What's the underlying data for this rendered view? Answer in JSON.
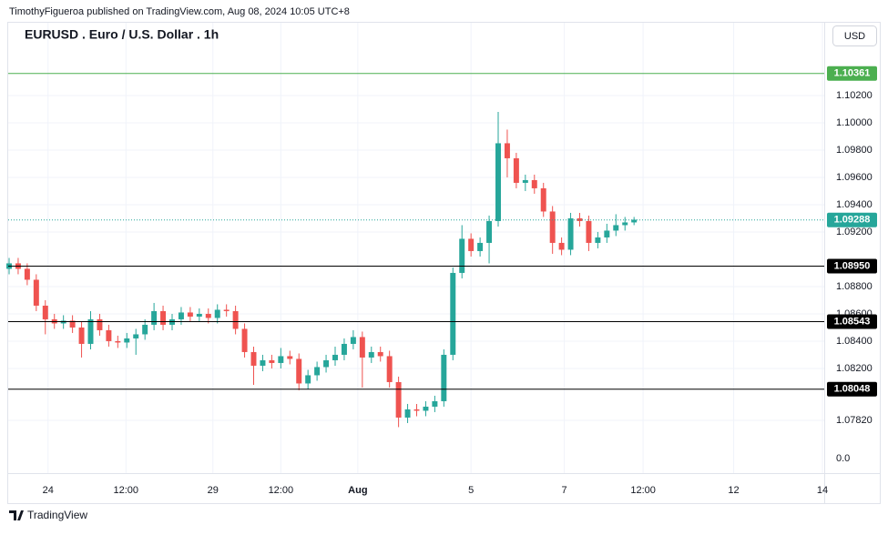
{
  "header": {
    "publisher": "TimothyFigueroa published on TradingView.com, Aug 08, 2024 10:05 UTC+8",
    "currency": "USD"
  },
  "footer": {
    "brand": "TradingView"
  },
  "chart_data": {
    "type": "candlestick",
    "title": "EURUSD . Euro / U.S. Dollar . 1h",
    "up_color": "#26a69a",
    "down_color": "#ef5350",
    "grid": true,
    "xlim": [
      0,
      90
    ],
    "xticks": [
      {
        "value": 4.3,
        "label": "24"
      },
      {
        "value": 12.9,
        "label": "12:00"
      },
      {
        "value": 22.5,
        "label": "29"
      },
      {
        "value": 30,
        "label": "12:00"
      },
      {
        "value": 38.5,
        "label": "Aug"
      },
      {
        "value": 51,
        "label": "5"
      },
      {
        "value": 61.3,
        "label": "7"
      },
      {
        "value": 70,
        "label": "12:00"
      },
      {
        "value": 80,
        "label": "12"
      },
      {
        "value": 89.8,
        "label": "14"
      }
    ],
    "ylim": [
      1.07433,
      1.10733
    ],
    "yticks": [
      {
        "value": 1.0782,
        "label": "1.07820"
      },
      {
        "value": 1.082,
        "label": "1.08200"
      },
      {
        "value": 1.084,
        "label": "1.08400"
      },
      {
        "value": 1.086,
        "label": "1.08600"
      },
      {
        "value": 1.088,
        "label": "1.08800"
      },
      {
        "value": 1.092,
        "label": "1.09200"
      },
      {
        "value": 1.094,
        "label": "1.09400"
      },
      {
        "value": 1.096,
        "label": "1.09600"
      },
      {
        "value": 1.098,
        "label": "1.09800"
      },
      {
        "value": 1.1,
        "label": "1.10000"
      },
      {
        "value": 1.102,
        "label": "1.10200"
      }
    ],
    "bottom_axis_label": "0.0",
    "levels": [
      {
        "value": 1.10361,
        "label": "1.10361",
        "color": "#4caf50"
      },
      {
        "value": 1.0895,
        "label": "1.08950",
        "color": "#000000"
      },
      {
        "value": 1.08543,
        "label": "1.08543",
        "color": "#000000"
      },
      {
        "value": 1.08048,
        "label": "1.08048",
        "color": "#000000"
      }
    ],
    "last_price": {
      "value": 1.09288,
      "label": "1.09288",
      "color": "#26a69a"
    },
    "open": [
      1.0893,
      1.0897,
      1.0893,
      1.0885,
      1.0866,
      1.0856,
      1.0853,
      1.0855,
      1.085,
      1.0838,
      1.0856,
      1.0848,
      1.084,
      1.0839,
      1.0842,
      1.0845,
      1.0852,
      1.0862,
      1.0852,
      1.0856,
      1.0861,
      1.0858,
      1.086,
      1.0857,
      1.0863,
      1.0862,
      1.0849,
      1.0832,
      1.0822,
      1.0826,
      1.0824,
      1.0829,
      1.0827,
      1.0809,
      1.0815,
      1.0821,
      1.0826,
      1.083,
      1.0838,
      1.0843,
      1.0828,
      1.0832,
      1.0829,
      1.081,
      1.0784,
      1.079,
      1.0789,
      1.0792,
      1.0796,
      1.083,
      1.089,
      1.0915,
      1.0906,
      1.0912,
      1.0928,
      1.0985,
      1.0974,
      1.0956,
      1.0958,
      1.0952,
      1.0935,
      1.0912,
      1.0907,
      1.093,
      1.0928,
      1.0912,
      1.0916,
      1.0921,
      1.0925,
      1.0927
    ],
    "high": [
      1.0901,
      1.0901,
      1.0897,
      1.0889,
      1.087,
      1.086,
      1.0859,
      1.0859,
      1.0854,
      1.0862,
      1.086,
      1.0852,
      1.0844,
      1.0846,
      1.0849,
      1.0856,
      1.0868,
      1.0866,
      1.086,
      1.0865,
      1.0865,
      1.0864,
      1.0864,
      1.0867,
      1.0867,
      1.0866,
      1.0853,
      1.0836,
      1.083,
      1.083,
      1.0835,
      1.0833,
      1.0831,
      1.0819,
      1.0825,
      1.083,
      1.0836,
      1.0842,
      1.0848,
      1.0847,
      1.0836,
      1.0836,
      1.0833,
      1.0814,
      1.0794,
      1.0794,
      1.0796,
      1.08,
      1.0834,
      1.0894,
      1.0925,
      1.0919,
      1.0916,
      1.0932,
      1.1008,
      1.0995,
      1.0978,
      1.0962,
      1.0962,
      1.0956,
      1.0939,
      1.0916,
      1.0934,
      1.0934,
      1.0932,
      1.092,
      1.0926,
      1.0933,
      1.0931,
      1.0931
    ],
    "low": [
      1.0889,
      1.0889,
      1.0881,
      1.0862,
      1.0845,
      1.0849,
      1.0849,
      1.0846,
      1.0828,
      1.0834,
      1.0844,
      1.0836,
      1.0835,
      1.0835,
      1.083,
      1.0841,
      1.0848,
      1.0848,
      1.0848,
      1.0852,
      1.0854,
      1.0854,
      1.0853,
      1.0853,
      1.0858,
      1.0845,
      1.0828,
      1.0808,
      1.0818,
      1.082,
      1.082,
      1.0823,
      1.0804,
      1.0805,
      1.0811,
      1.0817,
      1.0822,
      1.0826,
      1.0834,
      1.0806,
      1.0824,
      1.0825,
      1.0806,
      1.0777,
      1.078,
      1.0785,
      1.0785,
      1.0788,
      1.0792,
      1.0826,
      1.0886,
      1.0902,
      1.0902,
      1.0897,
      1.0924,
      1.096,
      1.0952,
      1.095,
      1.0948,
      1.0931,
      1.0904,
      1.0903,
      1.0903,
      1.0924,
      1.0906,
      1.0908,
      1.0912,
      1.0917,
      1.0921,
      1.0925
    ],
    "close": [
      1.0897,
      1.0893,
      1.0885,
      1.0866,
      1.0856,
      1.0853,
      1.0855,
      1.085,
      1.0838,
      1.0856,
      1.0848,
      1.084,
      1.0839,
      1.0842,
      1.0845,
      1.0852,
      1.0862,
      1.0852,
      1.0856,
      1.0861,
      1.0858,
      1.086,
      1.0857,
      1.0863,
      1.0862,
      1.0849,
      1.0832,
      1.0822,
      1.0826,
      1.0824,
      1.0829,
      1.0827,
      1.0809,
      1.0815,
      1.0821,
      1.0826,
      1.083,
      1.0838,
      1.0843,
      1.0828,
      1.0832,
      1.0829,
      1.081,
      1.0784,
      1.079,
      1.0789,
      1.0792,
      1.0796,
      1.083,
      1.089,
      1.0915,
      1.0906,
      1.0912,
      1.0928,
      1.0985,
      1.0974,
      1.0956,
      1.0958,
      1.0952,
      1.0935,
      1.0912,
      1.0907,
      1.093,
      1.0928,
      1.0912,
      1.0916,
      1.0921,
      1.0925,
      1.0927,
      1.0929
    ]
  }
}
